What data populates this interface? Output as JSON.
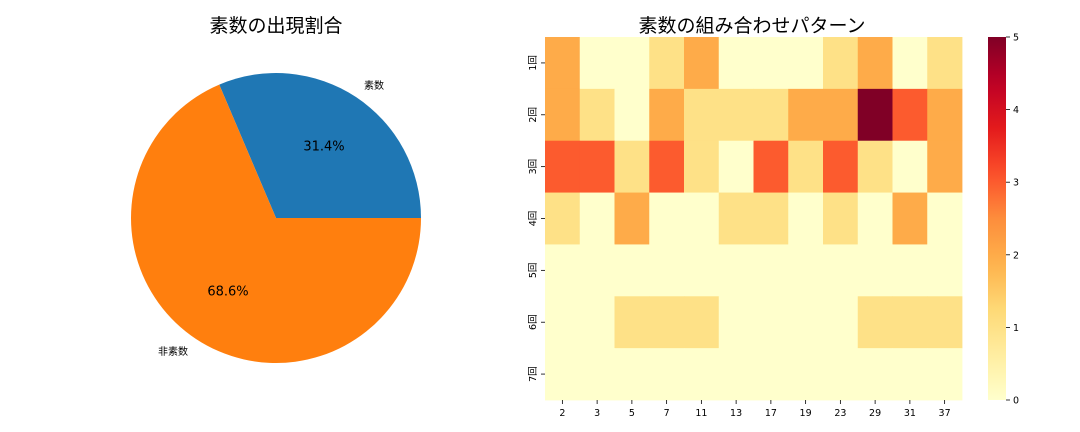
{
  "chart_data": [
    {
      "type": "pie",
      "title": "素数の出現割合",
      "labels": [
        "素数",
        "非素数"
      ],
      "values": [
        31.4,
        68.6
      ],
      "percent_labels": [
        "31.4%",
        "68.6%"
      ],
      "colors": [
        "#1f77b4",
        "#ff7f0e"
      ]
    },
    {
      "type": "heatmap",
      "title": "素数の組み合わせパターン",
      "x": [
        "2",
        "3",
        "5",
        "7",
        "11",
        "13",
        "17",
        "19",
        "23",
        "29",
        "31",
        "37"
      ],
      "y": [
        "1回",
        "2回",
        "3回",
        "4回",
        "5回",
        "6回",
        "7回"
      ],
      "values": [
        [
          2,
          0,
          0,
          1,
          2,
          0,
          0,
          0,
          1,
          2,
          0,
          1
        ],
        [
          2,
          1,
          0,
          2,
          1,
          1,
          1,
          2,
          2,
          5,
          3,
          2
        ],
        [
          3,
          3,
          1,
          3,
          1,
          0,
          3,
          1,
          3,
          1,
          0,
          2
        ],
        [
          1,
          0,
          2,
          0,
          0,
          1,
          1,
          0,
          1,
          0,
          2,
          0
        ],
        [
          0,
          0,
          0,
          0,
          0,
          0,
          0,
          0,
          0,
          0,
          0,
          0
        ],
        [
          0,
          0,
          1,
          1,
          1,
          0,
          0,
          0,
          0,
          1,
          1,
          1
        ],
        [
          0,
          0,
          0,
          0,
          0,
          0,
          0,
          0,
          0,
          0,
          0,
          0
        ]
      ],
      "vmin": 0,
      "vmax": 5,
      "colormap": "YlOrRd",
      "colorbar_ticks": [
        "0",
        "1",
        "2",
        "3",
        "4",
        "5"
      ]
    }
  ]
}
